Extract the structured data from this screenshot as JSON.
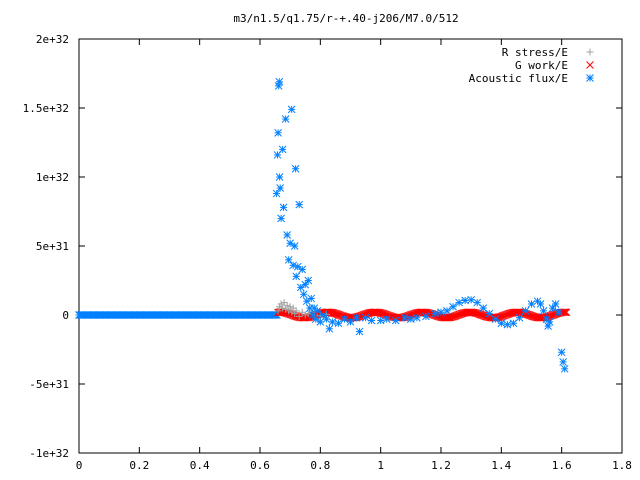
{
  "chart_data": {
    "type": "scatter",
    "title": "m3/n1.5/q1.75/r-+.40-j206/M7.0/512",
    "xlabel": "",
    "ylabel": "",
    "xlim": [
      0,
      1.8
    ],
    "ylim": [
      -1e+32,
      2e+32
    ],
    "x_ticks": [
      {
        "value": 0,
        "label": "0"
      },
      {
        "value": 0.2,
        "label": "0.2"
      },
      {
        "value": 0.4,
        "label": "0.4"
      },
      {
        "value": 0.6,
        "label": "0.6"
      },
      {
        "value": 0.8,
        "label": "0.8"
      },
      {
        "value": 1.0,
        "label": "1"
      },
      {
        "value": 1.2,
        "label": "1.2"
      },
      {
        "value": 1.4,
        "label": "1.4"
      },
      {
        "value": 1.6,
        "label": "1.6"
      },
      {
        "value": 1.8,
        "label": "1.8"
      }
    ],
    "y_ticks": [
      {
        "value": -1e+32,
        "label": "-1e+32"
      },
      {
        "value": -5e+31,
        "label": "-5e+31"
      },
      {
        "value": 0,
        "label": "0"
      },
      {
        "value": 5e+31,
        "label": "5e+31"
      },
      {
        "value": 1e+32,
        "label": "1e+32"
      },
      {
        "value": 1.5e+32,
        "label": "1.5e+32"
      },
      {
        "value": 2e+32,
        "label": "2e+32"
      }
    ],
    "grid": false,
    "legend_position": "top-right",
    "series": [
      {
        "name": "R stress/E",
        "marker": "plus",
        "color": "#a0a0a0",
        "points": [
          [
            0.66,
            3e+30
          ],
          [
            0.665,
            6e+30
          ],
          [
            0.67,
            8e+30
          ],
          [
            0.675,
            5e+30
          ],
          [
            0.68,
            9e+30
          ],
          [
            0.685,
            4e+30
          ],
          [
            0.69,
            7e+30
          ],
          [
            0.695,
            3e+30
          ],
          [
            0.7,
            6e+30
          ],
          [
            0.705,
            2e+30
          ],
          [
            0.71,
            5e+30
          ],
          [
            0.715,
            1e+30
          ],
          [
            0.72,
            3e+30
          ],
          [
            0.73,
            -1e+30
          ],
          [
            0.74,
            2e+30
          ],
          [
            0.75,
            0
          ],
          [
            0.76,
            1e+30
          ],
          [
            0.78,
            0
          ],
          [
            0.8,
            -5e+29
          ],
          [
            0.82,
            5e+29
          ]
        ]
      },
      {
        "name": "G work/E",
        "marker": "cross",
        "color": "#ff0000",
        "line_range": [
          0.66,
          1.62
        ],
        "amplitude": 2e+30
      },
      {
        "name": "Acoustic flux/E",
        "marker": "star",
        "color": "#0080ff",
        "flat_range": [
          0,
          0.66
        ],
        "points": [
          [
            0.655,
            8.8e+31
          ],
          [
            0.658,
            1.16e+32
          ],
          [
            0.66,
            1.32e+32
          ],
          [
            0.662,
            1.66e+32
          ],
          [
            0.664,
            1.69e+32
          ],
          [
            0.665,
            1e+32
          ],
          [
            0.667,
            9.2e+31
          ],
          [
            0.67,
            7e+31
          ],
          [
            0.675,
            1.2e+32
          ],
          [
            0.678,
            7.8e+31
          ],
          [
            0.685,
            1.42e+32
          ],
          [
            0.69,
            5.8e+31
          ],
          [
            0.695,
            4e+31
          ],
          [
            0.7,
            5.2e+31
          ],
          [
            0.705,
            1.49e+32
          ],
          [
            0.71,
            3.6e+31
          ],
          [
            0.715,
            5e+31
          ],
          [
            0.718,
            1.06e+32
          ],
          [
            0.72,
            2.8e+31
          ],
          [
            0.725,
            3.5e+31
          ],
          [
            0.73,
            8e+31
          ],
          [
            0.735,
            2e+31
          ],
          [
            0.74,
            3.3e+31
          ],
          [
            0.745,
            1.5e+31
          ],
          [
            0.75,
            2.2e+31
          ],
          [
            0.755,
            1e+31
          ],
          [
            0.76,
            2.5e+31
          ],
          [
            0.765,
            5e+30
          ],
          [
            0.77,
            1.2e+31
          ],
          [
            0.775,
            0
          ],
          [
            0.78,
            5e+30
          ],
          [
            0.785,
            -3e+30
          ],
          [
            0.79,
            3e+30
          ],
          [
            0.8,
            -5e+30
          ],
          [
            0.81,
            0
          ],
          [
            0.82,
            -3e+30
          ],
          [
            0.83,
            -1e+31
          ],
          [
            0.84,
            -5e+30
          ],
          [
            0.86,
            -6e+30
          ],
          [
            0.88,
            -3e+30
          ],
          [
            0.9,
            -5e+30
          ],
          [
            0.92,
            -2e+30
          ],
          [
            0.93,
            -1.2e+31
          ],
          [
            0.95,
            -2e+30
          ],
          [
            0.97,
            -4e+30
          ],
          [
            1.0,
            -4e+30
          ],
          [
            1.02,
            -3e+30
          ],
          [
            1.05,
            -4e+30
          ],
          [
            1.08,
            -2e+30
          ],
          [
            1.1,
            -3e+30
          ],
          [
            1.12,
            -2e+30
          ],
          [
            1.15,
            -1e+30
          ],
          [
            1.18,
            1e+30
          ],
          [
            1.2,
            2e+30
          ],
          [
            1.22,
            3e+30
          ],
          [
            1.24,
            6e+30
          ],
          [
            1.26,
            9e+30
          ],
          [
            1.28,
            1.05e+31
          ],
          [
            1.3,
            1.1e+31
          ],
          [
            1.32,
            9e+30
          ],
          [
            1.34,
            5e+30
          ],
          [
            1.36,
            1e+30
          ],
          [
            1.38,
            -3e+30
          ],
          [
            1.4,
            -6e+30
          ],
          [
            1.42,
            -7e+30
          ],
          [
            1.44,
            -6e+30
          ],
          [
            1.46,
            -2e+30
          ],
          [
            1.48,
            3e+30
          ],
          [
            1.5,
            8e+30
          ],
          [
            1.52,
            1e+31
          ],
          [
            1.53,
            8e+30
          ],
          [
            1.54,
            3e+30
          ],
          [
            1.55,
            -3e+30
          ],
          [
            1.555,
            -8e+30
          ],
          [
            1.56,
            -5e+30
          ],
          [
            1.57,
            5e+30
          ],
          [
            1.58,
            8e+30
          ],
          [
            1.59,
            2e+30
          ],
          [
            1.6,
            -2.7e+31
          ],
          [
            1.605,
            -3.4e+31
          ],
          [
            1.61,
            -3.9e+31
          ]
        ]
      }
    ]
  }
}
